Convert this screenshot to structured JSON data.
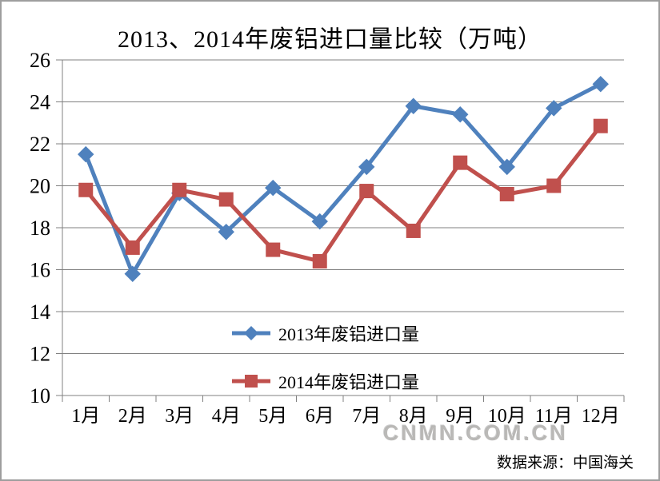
{
  "chart_data": {
    "type": "line",
    "title": "2013、2014年废铝进口量比较（万吨）",
    "categories": [
      "1月",
      "2月",
      "3月",
      "4月",
      "5月",
      "6月",
      "7月",
      "8月",
      "9月",
      "10月",
      "11月",
      "12月"
    ],
    "series": [
      {
        "name": "2013年废铝进口量",
        "color": "#4f81bd",
        "marker": "diamond",
        "values": [
          21.5,
          15.8,
          19.65,
          17.8,
          19.9,
          18.3,
          20.9,
          23.8,
          23.4,
          20.9,
          23.7,
          24.85
        ]
      },
      {
        "name": "2014年废铝进口量",
        "color": "#c0504d",
        "marker": "square",
        "values": [
          19.8,
          17.05,
          19.8,
          19.35,
          16.95,
          16.4,
          19.75,
          17.85,
          21.1,
          19.6,
          20.0,
          22.85
        ]
      }
    ],
    "xlabel": "",
    "ylabel": "",
    "ylim": [
      10,
      26
    ],
    "ytick_step": 2,
    "yticks": [
      10,
      12,
      14,
      16,
      18,
      20,
      22,
      24,
      26
    ],
    "grid": true,
    "grid_color": "#808080",
    "axis_color": "#808080",
    "legend_position": "inside-bottom-center"
  },
  "watermark": "CNMN.COM.CN",
  "source_note": "数据来源：中国海关"
}
